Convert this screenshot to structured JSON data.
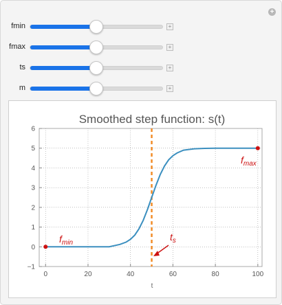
{
  "controls": {
    "sliders": [
      {
        "label": "fmin",
        "value": 0.5
      },
      {
        "label": "fmax",
        "value": 0.5
      },
      {
        "label": "ts",
        "value": 0.5
      },
      {
        "label": "m",
        "value": 0.5
      }
    ],
    "plus_symbol": "+",
    "corner_symbol": "+"
  },
  "colors": {
    "curve": "#3b8fbf",
    "ts_line": "#f28c28",
    "annotation": "#cc1111",
    "slider_fill": "#1a73e8"
  },
  "chart_data": {
    "type": "line",
    "title": "Smoothed step function: s(t)",
    "xlabel": "t",
    "ylabel": "",
    "xlim": [
      -3,
      102
    ],
    "ylim": [
      -1,
      6
    ],
    "xticks": [
      "0",
      "20",
      "40",
      "60",
      "80",
      "100"
    ],
    "yticks": [
      "−1",
      "0",
      "1",
      "2",
      "3",
      "4",
      "5",
      "6"
    ],
    "grid": true,
    "series": [
      {
        "fmin": 0,
        "fmax": 5,
        "ts": 50,
        "steepness": 0.25,
        "x": [
          0,
          5,
          10,
          15,
          20,
          25,
          30,
          35,
          38,
          40,
          42,
          44,
          46,
          48,
          50,
          52,
          54,
          56,
          58,
          60,
          62,
          65,
          70,
          75,
          80,
          85,
          90,
          95,
          100
        ],
        "y": [
          0,
          0,
          0,
          0,
          0,
          0,
          0.003,
          0.12,
          0.24,
          0.38,
          0.59,
          0.91,
          1.34,
          1.89,
          2.5,
          3.11,
          3.66,
          4.09,
          4.41,
          4.62,
          4.76,
          4.9,
          4.97,
          4.99,
          5,
          5,
          5,
          5,
          5
        ]
      }
    ],
    "ts_value": 50,
    "endpoints": [
      {
        "x": 0,
        "y": 0
      },
      {
        "x": 100,
        "y": 5
      }
    ],
    "annotations": {
      "fmin": {
        "main": "f",
        "sub": "min"
      },
      "fmax": {
        "main": "f",
        "sub": "max"
      },
      "ts": {
        "main": "t",
        "sub": "s"
      }
    }
  }
}
